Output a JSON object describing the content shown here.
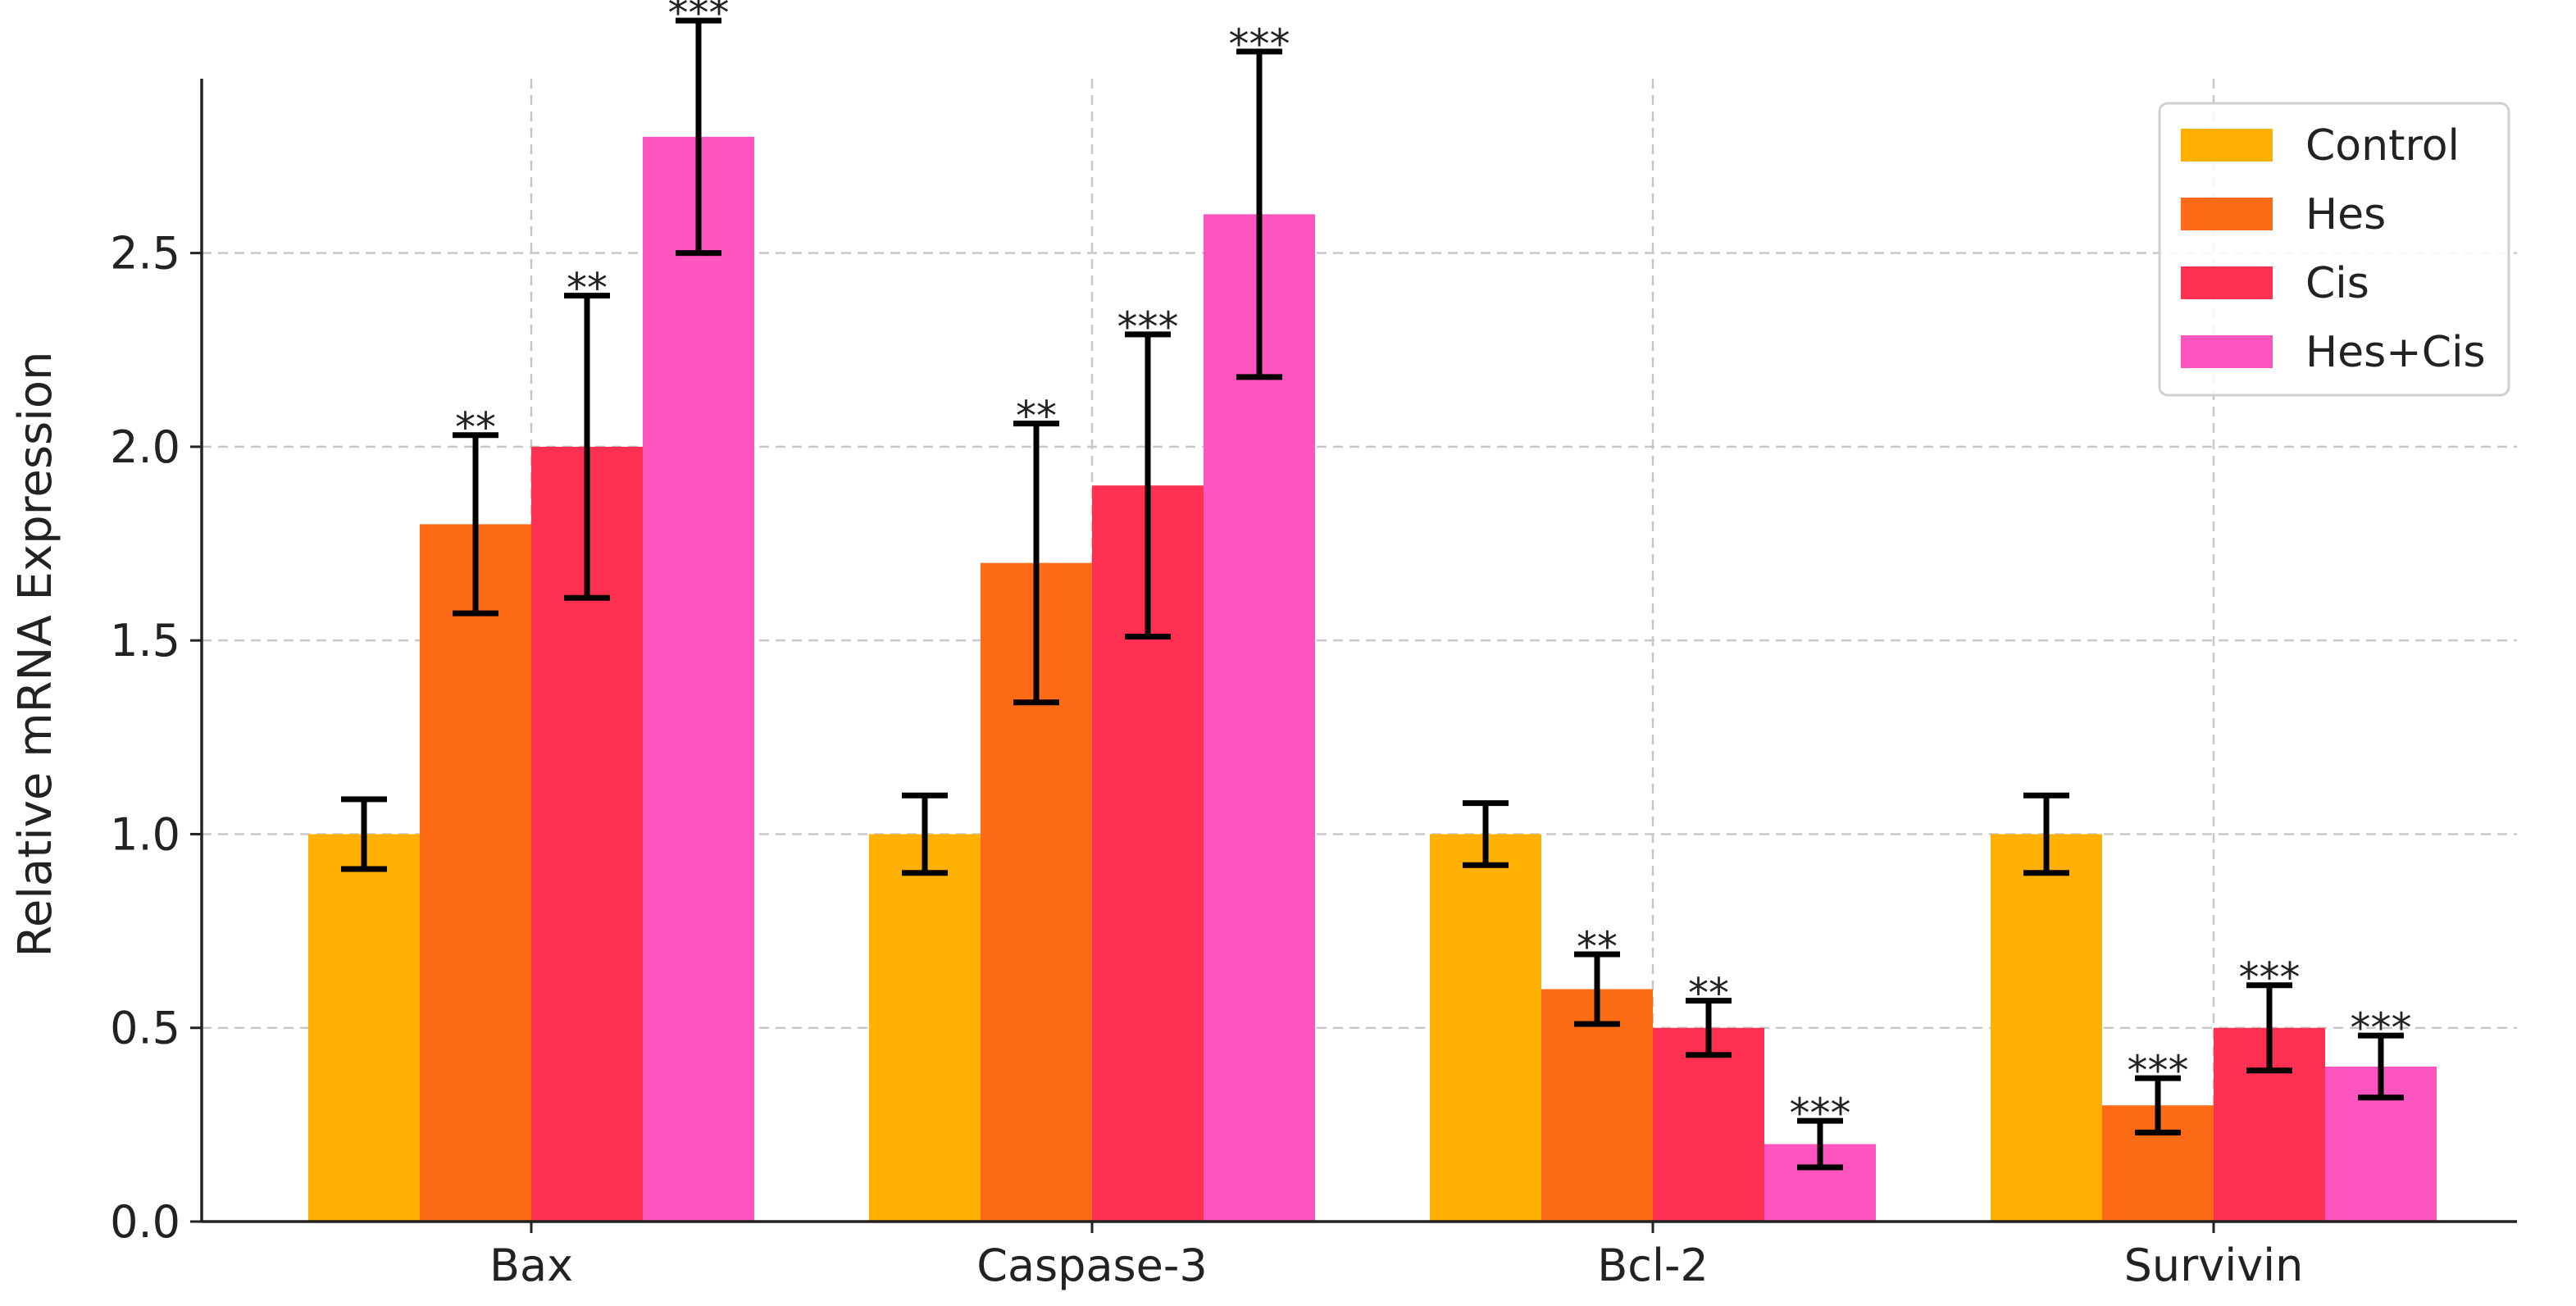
{
  "chart_data": {
    "type": "bar",
    "title": "",
    "xlabel": "",
    "ylabel": "Relative mRNA Expression",
    "ylim": [
      0,
      2.95
    ],
    "yticks": [
      "0.0",
      "0.5",
      "1.0",
      "1.5",
      "2.0",
      "2.5"
    ],
    "ytick_values": [
      0,
      0.5,
      1.0,
      1.5,
      2.0,
      2.5
    ],
    "grid": true,
    "legend_position": "top-right",
    "categories": [
      "Bax",
      "Caspase-3",
      "Bcl-2",
      "Survivin"
    ],
    "series": [
      {
        "name": "Control",
        "color": "#FFB000",
        "values": [
          1.0,
          1.0,
          1.0,
          1.0
        ],
        "errors": [
          0.09,
          0.1,
          0.08,
          0.1
        ],
        "significance": [
          "",
          "",
          "",
          ""
        ]
      },
      {
        "name": "Hes",
        "color": "#FE6B17",
        "values": [
          1.8,
          1.7,
          0.6,
          0.3
        ],
        "errors": [
          0.23,
          0.36,
          0.09,
          0.07
        ],
        "significance": [
          "**",
          "**",
          "**",
          "***"
        ]
      },
      {
        "name": "Cis",
        "color": "#FF3052",
        "values": [
          2.0,
          1.9,
          0.5,
          0.5
        ],
        "errors": [
          0.39,
          0.39,
          0.07,
          0.11
        ],
        "significance": [
          "**",
          "***",
          "**",
          "***"
        ]
      },
      {
        "name": "Hes+Cis",
        "color": "#FF55C0",
        "values": [
          2.8,
          2.6,
          0.2,
          0.4
        ],
        "errors": [
          0.3,
          0.42,
          0.06,
          0.08
        ],
        "significance": [
          "***",
          "***",
          "***",
          "***"
        ]
      }
    ]
  }
}
